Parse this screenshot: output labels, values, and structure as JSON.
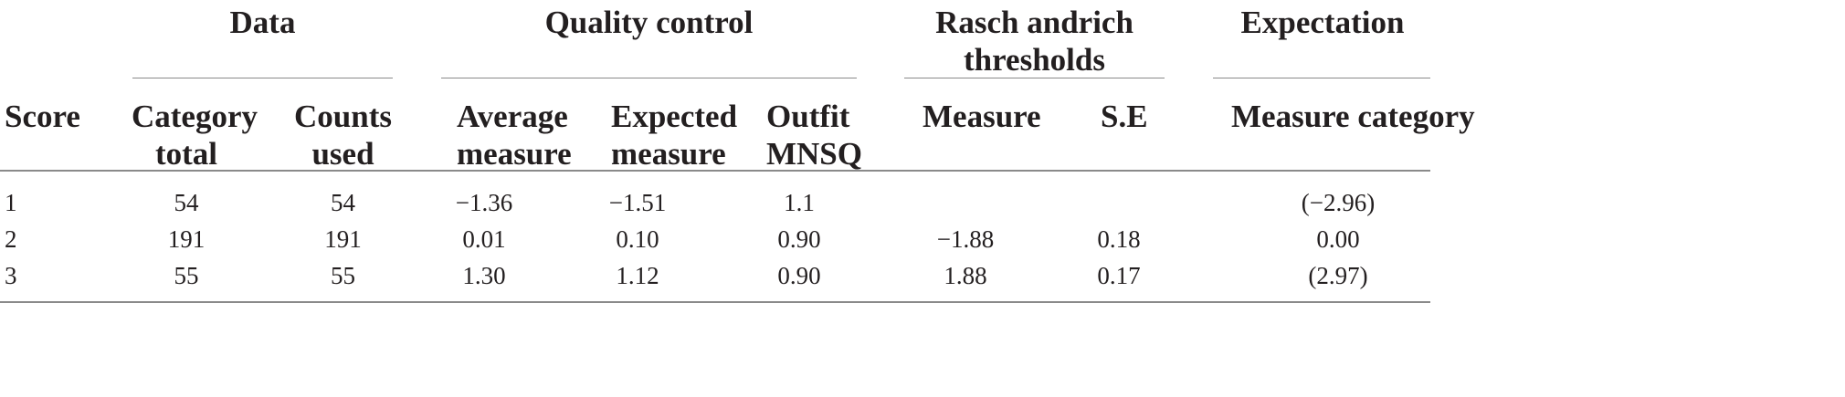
{
  "table": {
    "group_headers": [
      {
        "key": "data",
        "lines": [
          "Data"
        ]
      },
      {
        "key": "quality",
        "lines": [
          "Quality control"
        ]
      },
      {
        "key": "rasch",
        "lines": [
          "Rasch andrich",
          "thresholds"
        ]
      },
      {
        "key": "expectation",
        "lines": [
          "Expectation"
        ]
      }
    ],
    "column_headers": [
      {
        "key": "score",
        "lines": [
          "Score"
        ]
      },
      {
        "key": "category-total",
        "lines": [
          "Category",
          "total"
        ]
      },
      {
        "key": "counts-used",
        "lines": [
          "Counts",
          "used"
        ]
      },
      {
        "key": "average-measure",
        "lines": [
          "Average",
          "measure"
        ]
      },
      {
        "key": "expected-measure",
        "lines": [
          "Expected",
          "measure"
        ]
      },
      {
        "key": "outfit-mnsq",
        "lines": [
          "Outfit",
          "MNSQ"
        ]
      },
      {
        "key": "measure",
        "lines": [
          "Measure"
        ]
      },
      {
        "key": "se",
        "lines": [
          "S.E"
        ]
      },
      {
        "key": "measure-category",
        "lines": [
          "Measure category"
        ]
      }
    ],
    "rows": [
      [
        "1",
        "54",
        "54",
        "−1.36",
        "−1.51",
        "1.1",
        "",
        "",
        "(−2.96)"
      ],
      [
        "2",
        "191",
        "191",
        "0.01",
        "0.10",
        "0.90",
        "−1.88",
        "0.18",
        "0.00"
      ],
      [
        "3",
        "55",
        "55",
        "1.30",
        "1.12",
        "0.90",
        "1.88",
        "0.17",
        "(2.97)"
      ]
    ]
  }
}
